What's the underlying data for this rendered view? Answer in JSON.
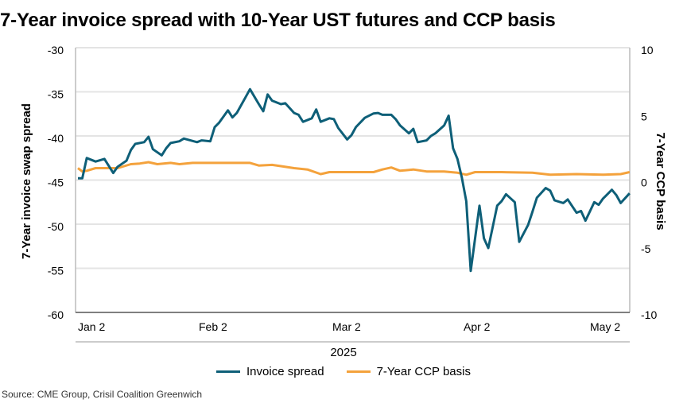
{
  "chart_data": {
    "type": "line",
    "title": "7-Year invoice spread with 10-Year UST futures and CCP basis",
    "xlabel": "2025",
    "ylabel": "7-Year invoice swap spread",
    "ylabel_right": "7-Year CCP basis",
    "ylim": [
      -60,
      -30
    ],
    "ylim_right": [
      -10,
      10
    ],
    "yticks": [
      "-30",
      "-35",
      "-40",
      "-45",
      "-50",
      "-55",
      "-60"
    ],
    "yticks_right": [
      "10",
      "5",
      "0",
      "-5",
      "-10"
    ],
    "xticks": [
      {
        "date": "2025-01-02",
        "label": "Jan 2"
      },
      {
        "date": "2025-02-02",
        "label": "Feb 2"
      },
      {
        "date": "2025-03-02",
        "label": "Mar 2"
      },
      {
        "date": "2025-04-02",
        "label": "Apr 2"
      },
      {
        "date": "2025-05-02",
        "label": "May 2"
      }
    ],
    "grid": true,
    "legend_position": "bottom",
    "series": [
      {
        "name": "Invoice spread",
        "axis": "left",
        "color": "#0e5f78",
        "points": [
          [
            "2025-01-02",
            -44.8
          ],
          [
            "2025-01-03",
            -44.8
          ],
          [
            "2025-01-04",
            -42.5
          ],
          [
            "2025-01-06",
            -42.9
          ],
          [
            "2025-01-08",
            -42.6
          ],
          [
            "2025-01-10",
            -44.2
          ],
          [
            "2025-01-11",
            -43.5
          ],
          [
            "2025-01-13",
            -42.8
          ],
          [
            "2025-01-14",
            -41.6
          ],
          [
            "2025-01-15",
            -40.9
          ],
          [
            "2025-01-17",
            -40.7
          ],
          [
            "2025-01-18",
            -40.1
          ],
          [
            "2025-01-19",
            -41.5
          ],
          [
            "2025-01-21",
            -42.2
          ],
          [
            "2025-01-22",
            -41.4
          ],
          [
            "2025-01-23",
            -40.8
          ],
          [
            "2025-01-25",
            -40.6
          ],
          [
            "2025-01-26",
            -40.3
          ],
          [
            "2025-01-29",
            -40.7
          ],
          [
            "2025-01-30",
            -40.5
          ],
          [
            "2025-02-01",
            -40.6
          ],
          [
            "2025-02-02",
            -39.0
          ],
          [
            "2025-02-03",
            -38.5
          ],
          [
            "2025-02-05",
            -37.1
          ],
          [
            "2025-02-06",
            -37.9
          ],
          [
            "2025-02-07",
            -37.4
          ],
          [
            "2025-02-09",
            -35.6
          ],
          [
            "2025-02-10",
            -34.7
          ],
          [
            "2025-02-12",
            -36.4
          ],
          [
            "2025-02-13",
            -37.2
          ],
          [
            "2025-02-14",
            -35.3
          ],
          [
            "2025-02-15",
            -36.0
          ],
          [
            "2025-02-17",
            -36.4
          ],
          [
            "2025-02-18",
            -36.3
          ],
          [
            "2025-02-20",
            -37.4
          ],
          [
            "2025-02-21",
            -37.6
          ],
          [
            "2025-02-22",
            -38.4
          ],
          [
            "2025-02-24",
            -38.0
          ],
          [
            "2025-02-25",
            -37.0
          ],
          [
            "2025-02-26",
            -38.4
          ],
          [
            "2025-02-28",
            -38.0
          ],
          [
            "2025-03-01",
            -38.1
          ],
          [
            "2025-03-02",
            -39.1
          ],
          [
            "2025-03-04",
            -40.4
          ],
          [
            "2025-03-05",
            -39.9
          ],
          [
            "2025-03-06",
            -39.0
          ],
          [
            "2025-03-08",
            -37.95
          ],
          [
            "2025-03-10",
            -37.45
          ],
          [
            "2025-03-11",
            -37.4
          ],
          [
            "2025-03-12",
            -37.6
          ],
          [
            "2025-03-14",
            -37.6
          ],
          [
            "2025-03-15",
            -38.1
          ],
          [
            "2025-03-16",
            -38.8
          ],
          [
            "2025-03-18",
            -39.7
          ],
          [
            "2025-03-19",
            -39.2
          ],
          [
            "2025-03-20",
            -40.7
          ],
          [
            "2025-03-22",
            -40.5
          ],
          [
            "2025-03-23",
            -40.0
          ],
          [
            "2025-03-24",
            -39.7
          ],
          [
            "2025-03-26",
            -38.8
          ],
          [
            "2025-03-27",
            -37.7
          ],
          [
            "2025-03-28",
            -41.4
          ],
          [
            "2025-03-29",
            -42.6
          ],
          [
            "2025-03-30",
            -44.7
          ],
          [
            "2025-03-31",
            -47.4
          ],
          [
            "2025-04-01",
            -55.3
          ],
          [
            "2025-04-03",
            -47.9
          ],
          [
            "2025-04-04",
            -51.6
          ],
          [
            "2025-04-05",
            -52.7
          ],
          [
            "2025-04-07",
            -47.9
          ],
          [
            "2025-04-08",
            -47.4
          ],
          [
            "2025-04-09",
            -46.6
          ],
          [
            "2025-04-11",
            -47.5
          ],
          [
            "2025-04-12",
            -52.0
          ],
          [
            "2025-04-14",
            -50.1
          ],
          [
            "2025-04-15",
            -48.6
          ],
          [
            "2025-04-16",
            -47.0
          ],
          [
            "2025-04-18",
            -45.9
          ],
          [
            "2025-04-19",
            -46.2
          ],
          [
            "2025-04-20",
            -47.3
          ],
          [
            "2025-04-22",
            -47.6
          ],
          [
            "2025-04-23",
            -47.2
          ],
          [
            "2025-04-25",
            -48.7
          ],
          [
            "2025-04-26",
            -48.5
          ],
          [
            "2025-04-27",
            -49.6
          ],
          [
            "2025-04-29",
            -47.5
          ],
          [
            "2025-04-30",
            -47.8
          ],
          [
            "2025-05-01",
            -47.1
          ],
          [
            "2025-05-03",
            -46.1
          ],
          [
            "2025-05-04",
            -46.7
          ],
          [
            "2025-05-05",
            -47.6
          ],
          [
            "2025-05-07",
            -46.5
          ]
        ]
      },
      {
        "name": "7-Year CCP basis",
        "axis": "right",
        "color": "#f4a23c",
        "points": [
          [
            "2025-01-02",
            0.9
          ],
          [
            "2025-01-03",
            0.65
          ],
          [
            "2025-01-04",
            0.7
          ],
          [
            "2025-01-06",
            0.9
          ],
          [
            "2025-01-11",
            0.9
          ],
          [
            "2025-01-14",
            1.2
          ],
          [
            "2025-01-16",
            1.25
          ],
          [
            "2025-01-18",
            1.35
          ],
          [
            "2025-01-20",
            1.2
          ],
          [
            "2025-01-23",
            1.3
          ],
          [
            "2025-01-25",
            1.2
          ],
          [
            "2025-01-28",
            1.3
          ],
          [
            "2025-02-03",
            1.3
          ],
          [
            "2025-02-10",
            1.3
          ],
          [
            "2025-02-12",
            1.1
          ],
          [
            "2025-02-15",
            1.15
          ],
          [
            "2025-02-17",
            1.05
          ],
          [
            "2025-02-20",
            0.9
          ],
          [
            "2025-02-23",
            0.8
          ],
          [
            "2025-02-26",
            0.45
          ],
          [
            "2025-02-28",
            0.6
          ],
          [
            "2025-03-05",
            0.6
          ],
          [
            "2025-03-10",
            0.6
          ],
          [
            "2025-03-12",
            0.8
          ],
          [
            "2025-03-14",
            0.95
          ],
          [
            "2025-03-16",
            0.7
          ],
          [
            "2025-03-19",
            0.8
          ],
          [
            "2025-03-22",
            0.65
          ],
          [
            "2025-03-26",
            0.65
          ],
          [
            "2025-03-29",
            0.55
          ],
          [
            "2025-03-31",
            0.4
          ],
          [
            "2025-04-02",
            0.6
          ],
          [
            "2025-04-08",
            0.6
          ],
          [
            "2025-04-15",
            0.55
          ],
          [
            "2025-04-19",
            0.4
          ],
          [
            "2025-04-25",
            0.45
          ],
          [
            "2025-05-01",
            0.4
          ],
          [
            "2025-05-05",
            0.45
          ],
          [
            "2025-05-07",
            0.6
          ]
        ]
      }
    ]
  },
  "source": "Source: CME Group, Crisil Coalition Greenwich"
}
